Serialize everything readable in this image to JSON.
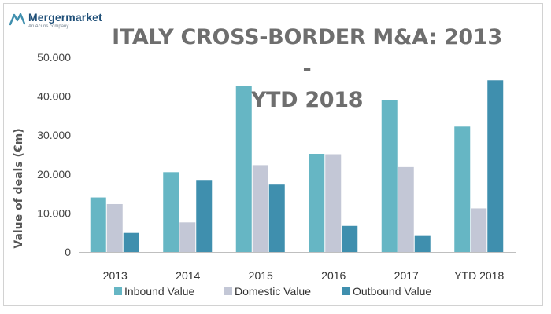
{
  "brand": {
    "name": "Mergermarket",
    "tagline": "An Acuris company",
    "accent": "#1f4f78",
    "icon": "mergermarket-logo-icon"
  },
  "chart_data": {
    "type": "bar",
    "title": "ITALY CROSS-BORDER M&A: 2013 - YTD 2018",
    "title_lines": [
      "ITALY CROSS-BORDER M&A: 2013 -",
      "YTD 2018"
    ],
    "xlabel": "",
    "ylabel": "Value of deals (€m)",
    "categories": [
      "2013",
      "2014",
      "2015",
      "2016",
      "2017",
      "YTD 2018"
    ],
    "series": [
      {
        "name": "Inbound Value",
        "color": "#66b6c4",
        "values": [
          14000,
          20500,
          42600,
          25200,
          39000,
          32200
        ]
      },
      {
        "name": "Domestic Value",
        "color": "#c3c7d6",
        "values": [
          12300,
          7600,
          22300,
          25100,
          21800,
          11200
        ]
      },
      {
        "name": "Outbound Value",
        "color": "#3f8fae",
        "values": [
          4900,
          18500,
          17300,
          6700,
          4100,
          44100
        ]
      }
    ],
    "ylim": [
      0,
      50000
    ],
    "yticks": [
      0,
      10000,
      20000,
      30000,
      40000,
      50000
    ],
    "ytick_labels": [
      "0",
      "10.000",
      "20.000",
      "30.000",
      "40.000",
      "50.000"
    ],
    "grid": false,
    "legend": "bottom"
  }
}
